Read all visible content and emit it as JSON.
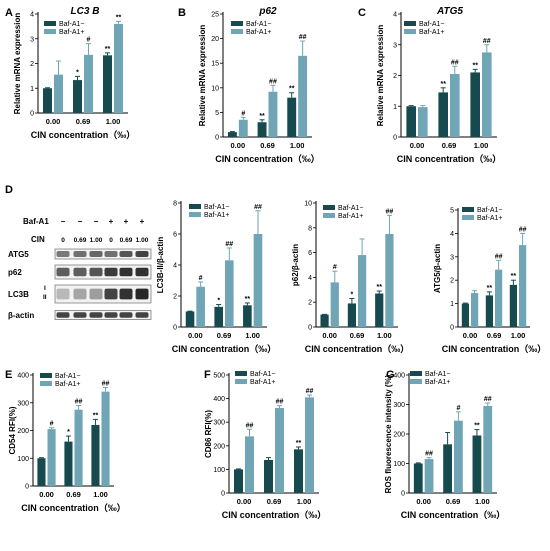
{
  "colors": {
    "dark": "#174a4f",
    "light": "#6fa5b5"
  },
  "legend": [
    "Baf-A1−",
    "Baf-A1+"
  ],
  "x_axis_label": "CIN concentration（‰）",
  "chart_data": [
    {
      "panel": "A",
      "type": "bar",
      "title": "LC3 B",
      "ylabel": "Relative mRNA expression",
      "categories": [
        "0.00",
        "0.69",
        "1.00"
      ],
      "ylim": [
        0,
        4
      ],
      "yticks": [
        "0",
        "1",
        "2",
        "3",
        "4"
      ],
      "series": [
        {
          "name": "Baf-A1−",
          "values": [
            1.0,
            1.33,
            2.33
          ],
          "errors": [
            0.02,
            0.15,
            0.1
          ],
          "annotations": [
            "",
            "*",
            "**"
          ]
        },
        {
          "name": "Baf-A1+",
          "values": [
            1.55,
            2.35,
            3.6
          ],
          "errors": [
            0.55,
            0.45,
            0.1
          ],
          "annotations": [
            "",
            "#",
            "**"
          ]
        }
      ]
    },
    {
      "panel": "B",
      "type": "bar",
      "title": "p62",
      "ylabel": "Relative mRNA expression",
      "categories": [
        "0.00",
        "0.69",
        "1.00"
      ],
      "ylim": [
        0,
        25
      ],
      "yticks": [
        "0",
        "5",
        "10",
        "15",
        "20",
        "25"
      ],
      "series": [
        {
          "name": "Baf-A1−",
          "values": [
            1.0,
            3.0,
            8.0
          ],
          "errors": [
            0.1,
            0.5,
            1.0
          ],
          "annotations": [
            "",
            "**",
            "**"
          ]
        },
        {
          "name": "Baf-A1+",
          "values": [
            3.5,
            9.2,
            16.5
          ],
          "errors": [
            0.5,
            1.3,
            3.0
          ],
          "annotations": [
            "#",
            "##",
            "##"
          ]
        }
      ]
    },
    {
      "panel": "C",
      "type": "bar",
      "title": "ATG5",
      "ylabel": "Relative mRNA expression",
      "categories": [
        "0.00",
        "0.69",
        "1.00"
      ],
      "ylim": [
        0,
        4
      ],
      "yticks": [
        "0",
        "1",
        "2",
        "3",
        "4"
      ],
      "series": [
        {
          "name": "Baf-A1−",
          "values": [
            1.0,
            1.45,
            2.1
          ],
          "errors": [
            0.02,
            0.15,
            0.1
          ],
          "annotations": [
            "",
            "**",
            "**"
          ]
        },
        {
          "name": "Baf-A1+",
          "values": [
            0.97,
            2.05,
            2.75
          ],
          "errors": [
            0.05,
            0.25,
            0.25
          ],
          "annotations": [
            "",
            "##",
            "##"
          ]
        }
      ]
    },
    {
      "panel": "D",
      "type": "bar",
      "ylabel": "LC3B-II/β-actin",
      "categories": [
        "0.00",
        "0.69",
        "1.00"
      ],
      "ylim": [
        0,
        8
      ],
      "yticks": [
        "0",
        "2",
        "4",
        "6",
        "8"
      ],
      "series": [
        {
          "name": "Baf-A1−",
          "values": [
            1.0,
            1.3,
            1.4
          ],
          "errors": [
            0.02,
            0.15,
            0.15
          ],
          "annotations": [
            "",
            "*",
            "**"
          ]
        },
        {
          "name": "Baf-A1+",
          "values": [
            2.6,
            4.3,
            6.0
          ],
          "errors": [
            0.3,
            0.8,
            1.5
          ],
          "annotations": [
            "#",
            "##",
            "##"
          ]
        }
      ]
    },
    {
      "panel": "D",
      "type": "bar",
      "ylabel": "p62/β-actin",
      "categories": [
        "0.00",
        "0.69",
        "1.00"
      ],
      "ylim": [
        0,
        10
      ],
      "yticks": [
        "0",
        "2",
        "4",
        "6",
        "8",
        "10"
      ],
      "series": [
        {
          "name": "Baf-A1−",
          "values": [
            1.0,
            1.9,
            2.7
          ],
          "errors": [
            0.02,
            0.4,
            0.2
          ],
          "annotations": [
            "",
            "*",
            "**"
          ]
        },
        {
          "name": "Baf-A1+",
          "values": [
            3.6,
            5.8,
            7.5
          ],
          "errors": [
            0.9,
            1.3,
            1.5
          ],
          "annotations": [
            "#",
            "",
            "##"
          ]
        }
      ]
    },
    {
      "panel": "D",
      "type": "bar",
      "ylabel": "ATG5/β-actin",
      "categories": [
        "0.00",
        "0.69",
        "1.00"
      ],
      "ylim": [
        0,
        5
      ],
      "yticks": [
        "0",
        "1",
        "2",
        "3",
        "4",
        "5"
      ],
      "series": [
        {
          "name": "Baf-A1−",
          "values": [
            1.0,
            1.35,
            1.8
          ],
          "errors": [
            0.02,
            0.15,
            0.2
          ],
          "annotations": [
            "",
            "**",
            "**"
          ]
        },
        {
          "name": "Baf-A1+",
          "values": [
            1.45,
            2.45,
            3.5
          ],
          "errors": [
            0.1,
            0.4,
            0.5
          ],
          "annotations": [
            "",
            "##",
            "##"
          ]
        }
      ]
    },
    {
      "panel": "E",
      "type": "bar",
      "ylabel": "CD54 RFI(%)",
      "categories": [
        "0.00",
        "0.69",
        "1.00"
      ],
      "ylim": [
        0,
        400
      ],
      "yticks": [
        "0",
        "100",
        "200",
        "300",
        "400"
      ],
      "series": [
        {
          "name": "Baf-A1−",
          "values": [
            100,
            160,
            220
          ],
          "errors": [
            2,
            20,
            20
          ],
          "annotations": [
            "",
            "*",
            "**"
          ]
        },
        {
          "name": "Baf-A1+",
          "values": [
            205,
            275,
            340
          ],
          "errors": [
            5,
            15,
            15
          ],
          "annotations": [
            "#",
            "##",
            "##"
          ]
        }
      ]
    },
    {
      "panel": "F",
      "type": "bar",
      "ylabel": "CD86 RFI(%)",
      "categories": [
        "0.00",
        "0.69",
        "1.00"
      ],
      "ylim": [
        0,
        500
      ],
      "yticks": [
        "0",
        "100",
        "200",
        "300",
        "400",
        "500"
      ],
      "series": [
        {
          "name": "Baf-A1−",
          "values": [
            100,
            140,
            185
          ],
          "errors": [
            2,
            10,
            10
          ],
          "annotations": [
            "",
            "",
            "**"
          ]
        },
        {
          "name": "Baf-A1+",
          "values": [
            240,
            360,
            405
          ],
          "errors": [
            30,
            10,
            10
          ],
          "annotations": [
            "##",
            "##",
            "##"
          ]
        }
      ]
    },
    {
      "panel": "G",
      "type": "bar",
      "ylabel": "ROS fluorescence intensity (%)",
      "categories": [
        "0.00",
        "0.69",
        "1.00"
      ],
      "ylim": [
        0,
        400
      ],
      "yticks": [
        "0",
        "100",
        "200",
        "300",
        "400"
      ],
      "series": [
        {
          "name": "Baf-A1−",
          "values": [
            100,
            165,
            195
          ],
          "errors": [
            2,
            40,
            20
          ],
          "annotations": [
            "",
            "",
            "**"
          ]
        },
        {
          "name": "Baf-A1+",
          "values": [
            115,
            245,
            295
          ],
          "errors": [
            5,
            30,
            10
          ],
          "annotations": [
            "##",
            "#",
            "##"
          ]
        }
      ]
    }
  ],
  "western_blot": {
    "panel": "D",
    "treatment_label": "Baf-A1",
    "treatment_signs": [
      "−",
      "−",
      "−",
      "+",
      "+",
      "+"
    ],
    "cin_label": "CIN",
    "cin_values": [
      "0",
      "0.69",
      "1.00",
      "0",
      "0.69",
      "1.00"
    ],
    "band_labels": [
      "ATG5",
      "p62",
      "LC3B",
      "β-actin"
    ],
    "lc3_forms": [
      "I",
      "II"
    ]
  }
}
